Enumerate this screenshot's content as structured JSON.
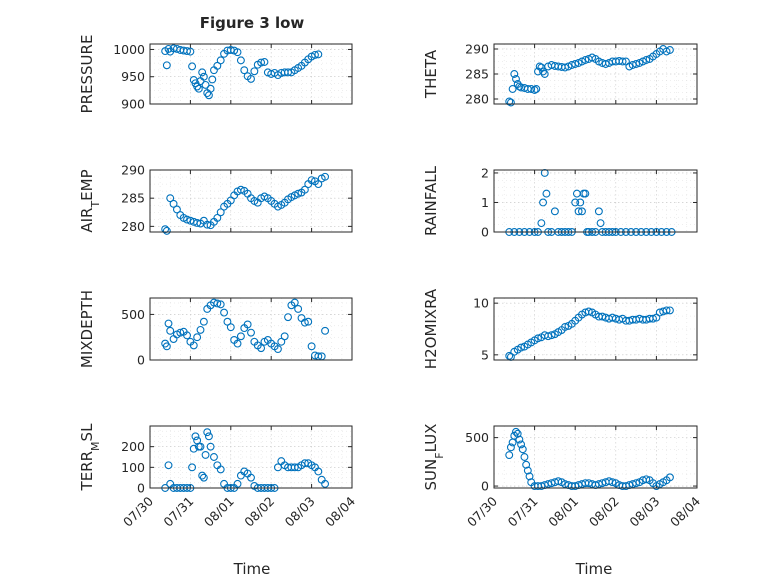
{
  "figure": {
    "title": "Figure 3 low",
    "xlabel_left": "Time",
    "xlabel_right": "Time"
  },
  "chart_data": [
    {
      "id": "pressure",
      "type": "scatter",
      "title": "Figure 3 low",
      "ylabel": "PRESSURE",
      "ylabel_sub": "",
      "ylim": [
        900,
        1010
      ],
      "yticks": [
        900,
        950,
        1000
      ],
      "xlim": [
        "07/30",
        "08/03 16:00"
      ],
      "x": [
        "07/30 09:00",
        "07/30 10:00",
        "07/30 11:00",
        "07/30 12:00",
        "07/30 14:00",
        "07/30 16:00",
        "07/30 18:00",
        "07/30 20:00",
        "07/30 22:00",
        "07/31 00:00",
        "07/31 01:00",
        "07/31 02:00",
        "07/31 03:00",
        "07/31 04:00",
        "07/31 05:00",
        "07/31 06:00",
        "07/31 07:00",
        "07/31 08:00",
        "07/31 09:00",
        "07/31 10:00",
        "07/31 11:00",
        "07/31 12:00",
        "07/31 13:00",
        "07/31 14:00",
        "07/31 16:00",
        "07/31 18:00",
        "07/31 20:00",
        "07/31 22:00",
        "08/01 00:00",
        "08/01 02:00",
        "08/01 04:00",
        "08/01 06:00",
        "08/01 08:00",
        "08/01 10:00",
        "08/01 12:00",
        "08/01 14:00",
        "08/01 16:00",
        "08/01 18:00",
        "08/01 20:00",
        "08/01 22:00",
        "08/02 00:00",
        "08/02 02:00",
        "08/02 04:00",
        "08/02 06:00",
        "08/02 08:00",
        "08/02 10:00",
        "08/02 12:00",
        "08/02 14:00",
        "08/02 16:00",
        "08/02 18:00",
        "08/02 20:00",
        "08/02 22:00",
        "08/03 00:00",
        "08/03 02:00",
        "08/03 04:00",
        "08/03 06:00",
        "08/03 08:00",
        "08/03 10:00"
      ],
      "y": [
        997,
        971,
        1001,
        996,
        1002,
        1001,
        999,
        998,
        997,
        996,
        969,
        944,
        938,
        932,
        928,
        942,
        958,
        950,
        935,
        920,
        916,
        928,
        945,
        962,
        970,
        980,
        992,
        998,
        999,
        998,
        995,
        980,
        962,
        951,
        946,
        960,
        972,
        976,
        977,
        958,
        955,
        957,
        953,
        957,
        958,
        958,
        958,
        962,
        966,
        970,
        976,
        982,
        987,
        990,
        991,
        null,
        null,
        null
      ]
    },
    {
      "id": "theta",
      "type": "scatter",
      "title": "",
      "ylabel": "THETA",
      "ylabel_sub": "",
      "ylim": [
        279,
        291
      ],
      "yticks": [
        280,
        285,
        290
      ],
      "xlim": [
        "07/30",
        "08/03 16:00"
      ],
      "x": [
        "07/30 09:00",
        "07/30 10:00",
        "07/30 11:00",
        "07/30 12:00",
        "07/30 13:00",
        "07/30 14:00",
        "07/30 15:00",
        "07/30 16:00",
        "07/30 18:00",
        "07/30 20:00",
        "07/30 22:00",
        "07/31 00:00",
        "07/31 01:00",
        "07/31 02:00",
        "07/31 03:00",
        "07/31 04:00",
        "07/31 05:00",
        "07/31 06:00",
        "07/31 08:00",
        "07/31 10:00",
        "07/31 12:00",
        "07/31 14:00",
        "07/31 16:00",
        "07/31 18:00",
        "07/31 20:00",
        "07/31 22:00",
        "08/01 00:00",
        "08/01 02:00",
        "08/01 04:00",
        "08/01 06:00",
        "08/01 08:00",
        "08/01 10:00",
        "08/01 12:00",
        "08/01 14:00",
        "08/01 16:00",
        "08/01 18:00",
        "08/01 20:00",
        "08/01 22:00",
        "08/02 00:00",
        "08/02 02:00",
        "08/02 04:00",
        "08/02 06:00",
        "08/02 08:00",
        "08/02 10:00",
        "08/02 12:00",
        "08/02 14:00",
        "08/02 16:00",
        "08/02 18:00",
        "08/02 20:00",
        "08/02 22:00",
        "08/03 00:00",
        "08/03 02:00",
        "08/03 04:00",
        "08/03 06:00",
        "08/03 08:00"
      ],
      "y": [
        279.5,
        279.3,
        282.0,
        285.0,
        284.0,
        283.0,
        282.5,
        282.3,
        282.2,
        282.0,
        282.0,
        281.8,
        282.0,
        285.5,
        286.5,
        286.3,
        285.5,
        285.0,
        286.5,
        286.8,
        286.6,
        286.5,
        286.4,
        286.3,
        286.5,
        286.8,
        287.0,
        287.2,
        287.5,
        287.8,
        288.0,
        288.3,
        288.0,
        287.5,
        287.2,
        287.0,
        287.2,
        287.5,
        287.5,
        287.6,
        287.5,
        287.5,
        286.5,
        286.8,
        287.0,
        287.2,
        287.5,
        287.8,
        288.0,
        288.5,
        289.0,
        289.5,
        290.0,
        289.5,
        289.8
      ]
    },
    {
      "id": "air-temp",
      "type": "scatter",
      "title": "",
      "ylabel": "AIR",
      "ylabel_sub": "T",
      "ylabel_tail": "EMP",
      "ylim": [
        279,
        290
      ],
      "yticks": [
        280,
        285,
        290
      ],
      "xlim": [
        "07/30",
        "08/03 16:00"
      ],
      "x": [
        "07/30 09:00",
        "07/30 10:00",
        "07/30 12:00",
        "07/30 14:00",
        "07/30 16:00",
        "07/30 18:00",
        "07/30 20:00",
        "07/30 22:00",
        "07/31 00:00",
        "07/31 02:00",
        "07/31 04:00",
        "07/31 06:00",
        "07/31 08:00",
        "07/31 10:00",
        "07/31 12:00",
        "07/31 14:00",
        "07/31 16:00",
        "07/31 18:00",
        "07/31 20:00",
        "07/31 22:00",
        "08/01 00:00",
        "08/01 02:00",
        "08/01 04:00",
        "08/01 06:00",
        "08/01 08:00",
        "08/01 10:00",
        "08/01 12:00",
        "08/01 14:00",
        "08/01 16:00",
        "08/01 18:00",
        "08/01 20:00",
        "08/01 22:00",
        "08/02 00:00",
        "08/02 02:00",
        "08/02 04:00",
        "08/02 06:00",
        "08/02 08:00",
        "08/02 10:00",
        "08/02 12:00",
        "08/02 14:00",
        "08/02 16:00",
        "08/02 18:00",
        "08/02 20:00",
        "08/02 22:00",
        "08/03 00:00",
        "08/03 02:00",
        "08/03 04:00",
        "08/03 06:00",
        "08/03 08:00"
      ],
      "y": [
        279.5,
        279.2,
        285.0,
        284.0,
        283.0,
        282.0,
        281.5,
        281.2,
        281.0,
        280.8,
        280.6,
        280.5,
        281.0,
        280.3,
        280.2,
        280.8,
        281.5,
        282.5,
        283.5,
        284.0,
        284.6,
        285.5,
        286.2,
        286.5,
        286.3,
        285.8,
        285.0,
        284.5,
        284.2,
        285.0,
        285.3,
        285.0,
        284.5,
        284.0,
        283.5,
        283.8,
        284.2,
        284.8,
        285.2,
        285.5,
        285.8,
        286.0,
        286.5,
        287.5,
        288.2,
        288.0,
        287.5,
        288.5,
        288.8
      ]
    },
    {
      "id": "rainfall",
      "type": "scatter",
      "title": "",
      "ylabel": "RAINFALL",
      "ylabel_sub": "",
      "ylim": [
        0,
        2.1
      ],
      "yticks": [
        0,
        1,
        2
      ],
      "xlim": [
        "07/30",
        "08/03 16:00"
      ],
      "x": [
        "07/30 09:00",
        "07/30 12:00",
        "07/30 15:00",
        "07/30 18:00",
        "07/30 21:00",
        "07/31 00:00",
        "07/31 02:00",
        "07/31 04:00",
        "07/31 05:00",
        "07/31 06:00",
        "07/31 07:00",
        "07/31 08:00",
        "07/31 10:00",
        "07/31 12:00",
        "07/31 14:00",
        "07/31 16:00",
        "07/31 18:00",
        "07/31 20:00",
        "07/31 22:00",
        "08/01 00:00",
        "08/01 01:00",
        "08/01 02:00",
        "08/01 03:00",
        "08/01 04:00",
        "08/01 05:00",
        "08/01 06:00",
        "08/01 07:00",
        "08/01 08:00",
        "08/01 10:00",
        "08/01 12:00",
        "08/01 14:00",
        "08/01 15:00",
        "08/01 16:00",
        "08/01 18:00",
        "08/01 20:00",
        "08/01 22:00",
        "08/02 00:00",
        "08/02 03:00",
        "08/02 06:00",
        "08/02 09:00",
        "08/02 12:00",
        "08/02 15:00",
        "08/02 18:00",
        "08/02 21:00",
        "08/03 00:00",
        "08/03 03:00",
        "08/03 06:00",
        "08/03 09:00"
      ],
      "y": [
        0,
        0,
        0,
        0,
        0,
        0,
        0,
        0.3,
        1.0,
        2.0,
        1.3,
        0,
        0,
        0.7,
        0,
        0,
        0,
        0,
        0,
        1.0,
        1.3,
        0.7,
        1.0,
        0.7,
        1.3,
        1.3,
        0,
        0,
        0,
        0,
        0.7,
        0.3,
        0,
        0,
        0,
        0,
        0,
        0,
        0,
        0,
        0,
        0,
        0,
        0,
        0,
        0,
        0,
        0
      ]
    },
    {
      "id": "mixdepth",
      "type": "scatter",
      "title": "",
      "ylabel": "MIXDEPTH",
      "ylabel_sub": "",
      "ylim": [
        0,
        680
      ],
      "yticks": [
        0,
        500
      ],
      "xlim": [
        "07/30",
        "08/03 16:00"
      ],
      "x": [
        "07/30 09:00",
        "07/30 10:00",
        "07/30 11:00",
        "07/30 12:00",
        "07/30 14:00",
        "07/30 16:00",
        "07/30 18:00",
        "07/30 20:00",
        "07/30 22:00",
        "07/31 00:00",
        "07/31 02:00",
        "07/31 04:00",
        "07/31 06:00",
        "07/31 08:00",
        "07/31 10:00",
        "07/31 12:00",
        "07/31 14:00",
        "07/31 16:00",
        "07/31 18:00",
        "07/31 20:00",
        "07/31 22:00",
        "08/01 00:00",
        "08/01 02:00",
        "08/01 04:00",
        "08/01 06:00",
        "08/01 08:00",
        "08/01 10:00",
        "08/01 12:00",
        "08/01 14:00",
        "08/01 16:00",
        "08/01 18:00",
        "08/01 20:00",
        "08/01 22:00",
        "08/02 00:00",
        "08/02 02:00",
        "08/02 04:00",
        "08/02 06:00",
        "08/02 08:00",
        "08/02 10:00",
        "08/02 12:00",
        "08/02 14:00",
        "08/02 16:00",
        "08/02 18:00",
        "08/02 20:00",
        "08/02 22:00",
        "08/03 00:00",
        "08/03 02:00",
        "08/03 04:00",
        "08/03 06:00",
        "08/03 08:00"
      ],
      "y": [
        180,
        150,
        400,
        320,
        230,
        280,
        300,
        310,
        270,
        200,
        160,
        250,
        330,
        420,
        560,
        600,
        630,
        620,
        610,
        520,
        420,
        360,
        220,
        180,
        260,
        350,
        390,
        300,
        200,
        160,
        130,
        200,
        220,
        180,
        150,
        120,
        200,
        260,
        470,
        600,
        630,
        560,
        460,
        410,
        420,
        150,
        50,
        40,
        40,
        320
      ]
    },
    {
      "id": "h2omixra",
      "type": "scatter",
      "title": "",
      "ylabel": "H2OMIXRA",
      "ylabel_sub": "",
      "ylim": [
        4.5,
        10.5
      ],
      "yticks": [
        5,
        10
      ],
      "xlim": [
        "07/30",
        "08/03 16:00"
      ],
      "x": [
        "07/30 09:00",
        "07/30 10:00",
        "07/30 12:00",
        "07/30 14:00",
        "07/30 16:00",
        "07/30 18:00",
        "07/30 20:00",
        "07/30 22:00",
        "07/31 00:00",
        "07/31 02:00",
        "07/31 04:00",
        "07/31 06:00",
        "07/31 08:00",
        "07/31 10:00",
        "07/31 12:00",
        "07/31 14:00",
        "07/31 16:00",
        "07/31 18:00",
        "07/31 20:00",
        "07/31 22:00",
        "08/01 00:00",
        "08/01 02:00",
        "08/01 04:00",
        "08/01 06:00",
        "08/01 08:00",
        "08/01 10:00",
        "08/01 12:00",
        "08/01 14:00",
        "08/01 16:00",
        "08/01 18:00",
        "08/01 20:00",
        "08/01 22:00",
        "08/02 00:00",
        "08/02 02:00",
        "08/02 04:00",
        "08/02 06:00",
        "08/02 08:00",
        "08/02 10:00",
        "08/02 12:00",
        "08/02 14:00",
        "08/02 16:00",
        "08/02 18:00",
        "08/02 20:00",
        "08/02 22:00",
        "08/03 00:00",
        "08/03 02:00",
        "08/03 04:00",
        "08/03 06:00",
        "08/03 08:00"
      ],
      "y": [
        4.9,
        4.8,
        5.3,
        5.5,
        5.7,
        5.8,
        6.0,
        6.2,
        6.4,
        6.6,
        6.7,
        6.9,
        6.8,
        6.9,
        7.0,
        7.2,
        7.4,
        7.7,
        7.8,
        8.0,
        8.3,
        8.6,
        8.9,
        9.1,
        9.2,
        9.1,
        8.9,
        8.7,
        8.7,
        8.6,
        8.5,
        8.6,
        8.5,
        8.4,
        8.5,
        8.3,
        8.3,
        8.4,
        8.4,
        8.5,
        8.4,
        8.4,
        8.5,
        8.5,
        8.6,
        9.1,
        9.2,
        9.3,
        9.3
      ]
    },
    {
      "id": "terr-msl",
      "type": "scatter",
      "title": "",
      "ylabel": "TERR",
      "ylabel_sub": "M",
      "ylabel_tail": "SL",
      "ylim": [
        0,
        300
      ],
      "yticks": [
        0,
        100,
        200
      ],
      "xlim": [
        "07/30",
        "08/03 16:00"
      ],
      "x": [
        "07/30 09:00",
        "07/30 11:00",
        "07/30 12:00",
        "07/30 14:00",
        "07/30 16:00",
        "07/30 18:00",
        "07/30 20:00",
        "07/30 22:00",
        "07/31 00:00",
        "07/31 01:00",
        "07/31 02:00",
        "07/31 03:00",
        "07/31 04:00",
        "07/31 05:00",
        "07/31 06:00",
        "07/31 07:00",
        "07/31 08:00",
        "07/31 09:00",
        "07/31 10:00",
        "07/31 11:00",
        "07/31 12:00",
        "07/31 14:00",
        "07/31 16:00",
        "07/31 18:00",
        "07/31 20:00",
        "07/31 22:00",
        "08/01 00:00",
        "08/01 02:00",
        "08/01 04:00",
        "08/01 06:00",
        "08/01 08:00",
        "08/01 10:00",
        "08/01 12:00",
        "08/01 14:00",
        "08/01 16:00",
        "08/01 18:00",
        "08/01 20:00",
        "08/01 22:00",
        "08/02 00:00",
        "08/02 02:00",
        "08/02 04:00",
        "08/02 06:00",
        "08/02 08:00",
        "08/02 10:00",
        "08/02 12:00",
        "08/02 14:00",
        "08/02 16:00",
        "08/02 18:00",
        "08/02 20:00",
        "08/02 22:00",
        "08/03 00:00",
        "08/03 02:00",
        "08/03 04:00",
        "08/03 06:00",
        "08/03 08:00"
      ],
      "y": [
        0,
        110,
        20,
        0,
        0,
        0,
        0,
        0,
        0,
        100,
        190,
        250,
        230,
        200,
        200,
        60,
        50,
        160,
        270,
        250,
        200,
        150,
        110,
        90,
        20,
        0,
        0,
        0,
        20,
        60,
        80,
        70,
        50,
        10,
        0,
        0,
        0,
        0,
        0,
        0,
        100,
        130,
        110,
        100,
        100,
        100,
        100,
        110,
        120,
        120,
        110,
        100,
        80,
        40,
        20
      ]
    },
    {
      "id": "sun-flux",
      "type": "scatter",
      "title": "",
      "ylabel": "SUN",
      "ylabel_sub": "F",
      "ylabel_tail": "LUX",
      "ylim": [
        -20,
        620
      ],
      "yticks": [
        0,
        500
      ],
      "xlim": [
        "07/30",
        "08/03 16:00"
      ],
      "x": [
        "07/30 09:00",
        "07/30 10:00",
        "07/30 11:00",
        "07/30 12:00",
        "07/30 13:00",
        "07/30 14:00",
        "07/30 15:00",
        "07/30 16:00",
        "07/30 17:00",
        "07/30 18:00",
        "07/30 19:00",
        "07/30 20:00",
        "07/30 21:00",
        "07/30 22:00",
        "07/31 00:00",
        "07/31 02:00",
        "07/31 04:00",
        "07/31 06:00",
        "07/31 08:00",
        "07/31 10:00",
        "07/31 12:00",
        "07/31 14:00",
        "07/31 16:00",
        "07/31 18:00",
        "07/31 20:00",
        "07/31 22:00",
        "08/01 00:00",
        "08/01 02:00",
        "08/01 04:00",
        "08/01 06:00",
        "08/01 08:00",
        "08/01 10:00",
        "08/01 12:00",
        "08/01 14:00",
        "08/01 16:00",
        "08/01 18:00",
        "08/01 20:00",
        "08/01 22:00",
        "08/02 00:00",
        "08/02 02:00",
        "08/02 04:00",
        "08/02 06:00",
        "08/02 08:00",
        "08/02 10:00",
        "08/02 12:00",
        "08/02 14:00",
        "08/02 16:00",
        "08/02 18:00",
        "08/02 20:00",
        "08/02 22:00",
        "08/03 00:00",
        "08/03 02:00",
        "08/03 04:00",
        "08/03 06:00",
        "08/03 08:00"
      ],
      "y": [
        320,
        400,
        450,
        520,
        560,
        540,
        480,
        430,
        380,
        300,
        220,
        160,
        100,
        40,
        0,
        0,
        0,
        10,
        20,
        30,
        40,
        50,
        40,
        20,
        10,
        0,
        0,
        10,
        20,
        30,
        30,
        20,
        10,
        20,
        30,
        40,
        50,
        40,
        30,
        10,
        0,
        0,
        10,
        20,
        30,
        40,
        60,
        70,
        60,
        30,
        0,
        20,
        40,
        60,
        90
      ]
    }
  ],
  "xaxis": {
    "ticks": [
      "07/30",
      "07/31",
      "08/01",
      "08/02",
      "08/03",
      "08/04"
    ]
  }
}
